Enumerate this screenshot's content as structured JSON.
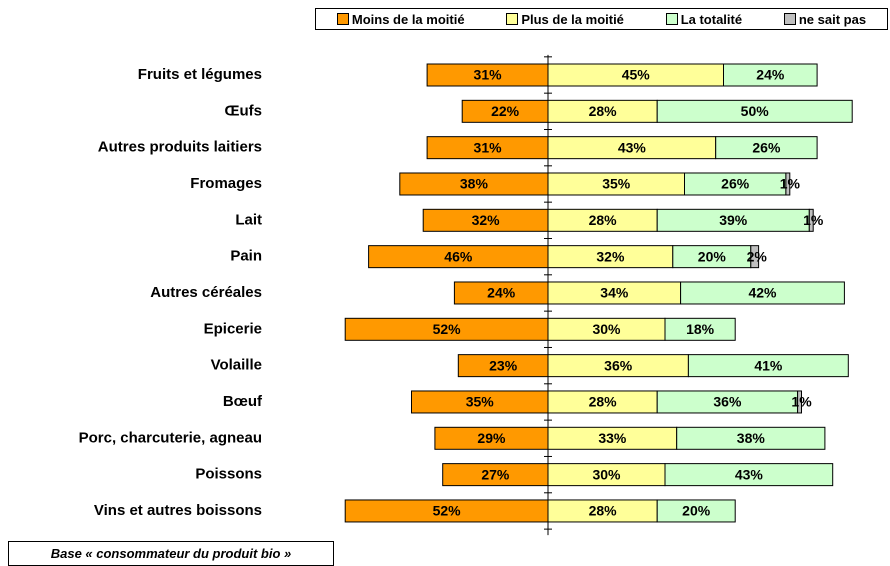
{
  "chart_data": {
    "type": "diverging-bar",
    "categories": [
      "Fruits et légumes",
      "Œufs",
      "Autres produits laitiers",
      "Fromages",
      "Lait",
      "Pain",
      "Autres céréales",
      "Epicerie",
      "Volaille",
      "Bœuf",
      "Porc, charcuterie, agneau",
      "Poissons",
      "Vins et autres boissons"
    ],
    "series": [
      {
        "name": "Moins de la moitié",
        "color": "#FF9900",
        "values": [
          31,
          22,
          31,
          38,
          32,
          46,
          24,
          52,
          23,
          35,
          29,
          27,
          52
        ],
        "value_labels": [
          "31%",
          "22%",
          "31%",
          "38%",
          "32%",
          "46%",
          "24%",
          "52%",
          "23%",
          "35%",
          "29%",
          "27%",
          "52%"
        ]
      },
      {
        "name": "Plus de la moitié",
        "color": "#FFFF99",
        "values": [
          45,
          28,
          43,
          35,
          28,
          32,
          34,
          30,
          36,
          28,
          33,
          30,
          28
        ],
        "value_labels": [
          "45%",
          "28%",
          "43%",
          "35%",
          "28%",
          "32%",
          "34%",
          "30%",
          "36%",
          "28%",
          "33%",
          "30%",
          "28%"
        ]
      },
      {
        "name": "La totalité",
        "color": "#CCFFCC",
        "values": [
          24,
          50,
          26,
          26,
          39,
          20,
          42,
          18,
          41,
          36,
          38,
          43,
          20
        ],
        "value_labels": [
          "24%",
          "50%",
          "26%",
          "26%",
          "39%",
          "20%",
          "42%",
          "18%",
          "41%",
          "36%",
          "38%",
          "43%",
          "20%"
        ]
      },
      {
        "name": "ne sait pas",
        "color": "#C0C0C0",
        "values": [
          null,
          null,
          null,
          1,
          1,
          2,
          null,
          null,
          null,
          1,
          null,
          null,
          null
        ],
        "value_labels": [
          null,
          null,
          null,
          "1%",
          "1%",
          "2%",
          null,
          null,
          null,
          "1%",
          null,
          null,
          null
        ]
      }
    ],
    "footnote": "Base « consommateur du produit bio »"
  }
}
